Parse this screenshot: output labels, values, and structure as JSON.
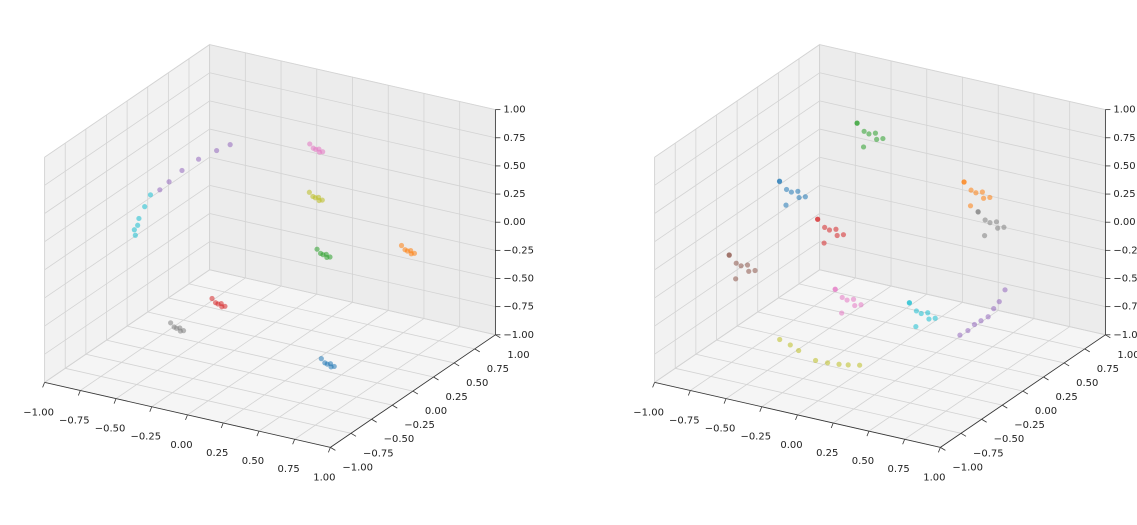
{
  "chart_data": [
    {
      "type": "scatter3d",
      "grid": true,
      "xlim": [
        -1,
        1
      ],
      "ylim": [
        -1,
        1
      ],
      "zlim": [
        -1,
        1
      ],
      "xticks": [
        {
          "value": -1,
          "label": "−1.00"
        },
        {
          "value": -0.75,
          "label": "−0.75"
        },
        {
          "value": -0.5,
          "label": "−0.50"
        },
        {
          "value": -0.25,
          "label": "−0.25"
        },
        {
          "value": 0,
          "label": "0.00"
        },
        {
          "value": 0.25,
          "label": "0.25"
        },
        {
          "value": 0.5,
          "label": "0.50"
        },
        {
          "value": 0.75,
          "label": "0.75"
        },
        {
          "value": 1,
          "label": "1.00"
        }
      ],
      "yticks": [
        {
          "value": -1,
          "label": "−1.00"
        },
        {
          "value": -0.75,
          "label": "−0.75"
        },
        {
          "value": -0.5,
          "label": "−0.50"
        },
        {
          "value": -0.25,
          "label": "−0.25"
        },
        {
          "value": 0,
          "label": "0.00"
        },
        {
          "value": 0.25,
          "label": "0.25"
        },
        {
          "value": 0.5,
          "label": "0.50"
        },
        {
          "value": 0.75,
          "label": "0.75"
        },
        {
          "value": 1,
          "label": "1.00"
        }
      ],
      "zticks": [
        {
          "value": -1,
          "label": "−1.00"
        },
        {
          "value": -0.75,
          "label": "−0.75"
        },
        {
          "value": -0.5,
          "label": "−0.50"
        },
        {
          "value": -0.25,
          "label": "−0.25"
        },
        {
          "value": 0,
          "label": "0.00"
        },
        {
          "value": 0.25,
          "label": "0.25"
        },
        {
          "value": 0.5,
          "label": "0.50"
        },
        {
          "value": 0.75,
          "label": "0.75"
        },
        {
          "value": 1,
          "label": "1.00"
        }
      ],
      "series": [
        {
          "color": "#1f77b4",
          "x": [
            0.62,
            0.66,
            0.58,
            0.64,
            0.59,
            0.67
          ],
          "y": [
            -0.38,
            -0.41,
            -0.34,
            -0.33,
            -0.4,
            -0.42
          ],
          "z": [
            -0.68,
            -0.65,
            -0.7,
            -0.72,
            -0.63,
            -0.67
          ]
        },
        {
          "color": "#ff7f0e",
          "x": [
            0.5,
            0.54,
            0.46,
            0.52,
            0.47,
            0.55
          ],
          "y": [
            0.8,
            0.77,
            0.84,
            0.85,
            0.78,
            0.76
          ],
          "z": [
            -0.3,
            -0.27,
            -0.32,
            -0.34,
            -0.25,
            -0.29
          ]
        },
        {
          "color": "#2ca02c",
          "x": [
            0.7,
            0.74,
            0.66,
            0.72,
            0.67,
            0.75
          ],
          "y": [
            -0.57,
            -0.6,
            -0.53,
            -0.52,
            -0.59,
            -0.61
          ],
          "z": [
            0.41,
            0.44,
            0.39,
            0.37,
            0.46,
            0.42
          ]
        },
        {
          "color": "#d62728",
          "x": [
            -0.52,
            -0.48,
            -0.56,
            -0.5,
            -0.55,
            -0.47
          ],
          "y": [
            0.27,
            0.24,
            0.31,
            0.32,
            0.25,
            0.23
          ],
          "z": [
            -0.8,
            -0.77,
            -0.82,
            -0.84,
            -0.75,
            -0.79
          ]
        },
        {
          "color": "#9467bd",
          "x": [
            -0.72,
            -0.8,
            -0.87,
            -0.92,
            -0.95,
            -0.66
          ],
          "y": [
            0.6,
            0.52,
            0.44,
            0.37,
            0.31,
            0.66
          ],
          "z": [
            0.34,
            0.28,
            0.2,
            0.12,
            0.07,
            0.38
          ]
        },
        {
          "color": "#e377c2",
          "x": [
            -0.2,
            -0.16,
            -0.24,
            -0.18,
            -0.23,
            -0.15
          ],
          "y": [
            0.9,
            0.87,
            0.94,
            0.95,
            0.88,
            0.86
          ],
          "z": [
            0.35,
            0.38,
            0.33,
            0.31,
            0.4,
            0.36
          ]
        },
        {
          "color": "#7f7f7f",
          "x": [
            -0.55,
            -0.51,
            -0.59,
            -0.53,
            -0.58,
            -0.5
          ],
          "y": [
            -0.18,
            -0.21,
            -0.14,
            -0.13,
            -0.2,
            -0.22
          ],
          "z": [
            -0.8,
            -0.77,
            -0.82,
            -0.84,
            -0.75,
            -0.79
          ]
        },
        {
          "color": "#bcbd22",
          "x": [
            -0.22,
            -0.18,
            -0.26,
            -0.2,
            -0.25,
            -0.17
          ],
          "y": [
            0.93,
            0.9,
            0.97,
            0.98,
            0.91,
            0.89
          ],
          "z": [
            -0.1,
            -0.07,
            -0.12,
            -0.14,
            -0.05,
            -0.09
          ]
        },
        {
          "color": "#17becf",
          "x": [
            -0.9,
            -0.9,
            -0.9,
            -0.88,
            -0.85,
            -0.88
          ],
          "y": [
            0.11,
            0.04,
            -0.03,
            -0.08,
            -0.16,
            -0.12
          ],
          "z": [
            0.14,
            0.07,
            0.0,
            -0.03,
            -0.07,
            -0.05
          ]
        }
      ]
    },
    {
      "type": "scatter3d",
      "grid": true,
      "xlim": [
        -1,
        1
      ],
      "ylim": [
        -1,
        1
      ],
      "zlim": [
        -1,
        1
      ],
      "xticks": [
        {
          "value": -1,
          "label": "−1.00"
        },
        {
          "value": -0.75,
          "label": "−0.75"
        },
        {
          "value": -0.5,
          "label": "−0.50"
        },
        {
          "value": -0.25,
          "label": "−0.25"
        },
        {
          "value": 0,
          "label": "0.00"
        },
        {
          "value": 0.25,
          "label": "0.25"
        },
        {
          "value": 0.5,
          "label": "0.50"
        },
        {
          "value": 0.75,
          "label": "0.75"
        },
        {
          "value": 1,
          "label": "1.00"
        }
      ],
      "yticks": [
        {
          "value": -1,
          "label": "−1.00"
        },
        {
          "value": -0.75,
          "label": "−0.75"
        },
        {
          "value": -0.5,
          "label": "−0.50"
        },
        {
          "value": -0.25,
          "label": "−0.25"
        },
        {
          "value": 0,
          "label": "0.00"
        },
        {
          "value": 0.25,
          "label": "0.25"
        },
        {
          "value": 0.5,
          "label": "0.50"
        },
        {
          "value": 0.75,
          "label": "0.75"
        },
        {
          "value": 1,
          "label": "1.00"
        }
      ],
      "zticks": [
        {
          "value": -1,
          "label": "−1.00"
        },
        {
          "value": -0.75,
          "label": "−0.75"
        },
        {
          "value": -0.5,
          "label": "−0.50"
        },
        {
          "value": -0.25,
          "label": "−0.25"
        },
        {
          "value": 0,
          "label": "0.00"
        },
        {
          "value": 0.25,
          "label": "0.25"
        },
        {
          "value": 0.5,
          "label": "0.50"
        },
        {
          "value": 0.75,
          "label": "0.75"
        },
        {
          "value": 1,
          "label": "1.00"
        }
      ],
      "series": [
        {
          "color": "#1f77b4",
          "x": [
            -0.88,
            -0.8,
            -0.96,
            -0.84,
            -0.94,
            -0.78,
            -0.98,
            -0.86
          ],
          "y": [
            0.45,
            0.39,
            0.53,
            0.55,
            0.41,
            0.37,
            0.48,
            0.35
          ],
          "z": [
            0,
            0.06,
            -0.04,
            -0.08,
            0.1,
            0.02,
            0.05,
            -0.06
          ]
        },
        {
          "color": "#ff7f0e",
          "x": [
            0.7,
            0.78,
            0.62,
            0.74,
            0.64,
            0.8,
            0.6,
            0.72
          ],
          "y": [
            -0.05,
            -0.11,
            0.03,
            0.05,
            -0.09,
            -0.13,
            -0.02,
            -0.15
          ],
          "z": [
            0.7,
            0.76,
            0.66,
            0.62,
            0.8,
            0.72,
            0.75,
            0.64
          ]
        },
        {
          "color": "#2ca02c",
          "x": [
            -0.47,
            -0.39,
            -0.55,
            -0.43,
            -0.53,
            -0.37,
            -0.57,
            -0.45
          ],
          "y": [
            0.68,
            0.62,
            0.76,
            0.78,
            0.64,
            0.6,
            0.71,
            0.58
          ],
          "z": [
            0.52,
            0.58,
            0.48,
            0.44,
            0.62,
            0.54,
            0.57,
            0.46
          ]
        },
        {
          "color": "#d62728",
          "x": [
            -0.7,
            -0.62,
            -0.78,
            -0.66,
            -0.76,
            -0.6,
            -0.8,
            -0.68
          ],
          "y": [
            0.6,
            0.54,
            0.68,
            0.7,
            0.56,
            0.52,
            0.63,
            0.5
          ],
          "z": [
            -0.36,
            -0.3,
            -0.4,
            -0.44,
            -0.26,
            -0.34,
            -0.31,
            -0.42
          ]
        },
        {
          "color": "#9467bd",
          "x": [
            0.75,
            0.84,
            0.93,
            0.95,
            0.95,
            0.88,
            0.8,
            0.94
          ],
          "y": [
            -0.33,
            -0.31,
            -0.3,
            -0.2,
            -0.13,
            -0.3,
            -0.32,
            -0.25
          ],
          "z": [
            -0.41,
            -0.3,
            -0.21,
            -0.12,
            -0.05,
            -0.26,
            -0.36,
            -0.16
          ]
        },
        {
          "color": "#8c564b",
          "x": [
            -0.88,
            -0.8,
            -0.96,
            -0.84,
            -0.94,
            -0.78,
            -0.98,
            -0.86
          ],
          "y": [
            -0.16,
            -0.22,
            -0.08,
            -0.06,
            -0.2,
            -0.24,
            -0.13,
            -0.26
          ],
          "z": [
            -0.35,
            -0.29,
            -0.39,
            -0.43,
            -0.25,
            -0.33,
            -0.3,
            -0.41
          ]
        },
        {
          "color": "#e377c2",
          "x": [
            -0.45,
            -0.37,
            -0.53,
            -0.41,
            -0.51,
            -0.35,
            -0.55,
            -0.43
          ],
          "y": [
            0.38,
            0.32,
            0.46,
            0.48,
            0.34,
            0.3,
            0.41,
            0.28
          ],
          "z": [
            -0.8,
            -0.74,
            -0.84,
            -0.88,
            -0.7,
            -0.78,
            -0.75,
            -0.86
          ]
        },
        {
          "color": "#7f7f7f",
          "x": [
            0.25,
            0.33,
            0.17,
            0.29,
            0.19,
            0.35,
            0.15,
            0.27
          ],
          "y": [
            0.9,
            0.84,
            0.98,
            1.0,
            0.86,
            0.82,
            0.93,
            0.8
          ],
          "z": [
            -0.17,
            -0.11,
            -0.21,
            -0.25,
            -0.07,
            -0.15,
            -0.12,
            -0.23
          ]
        },
        {
          "color": "#bcbd22",
          "x": [
            -0.5,
            -0.35,
            -0.22,
            -0.05,
            0.1,
            -0.42,
            -0.13,
            0.02
          ],
          "y": [
            -0.35,
            -0.38,
            -0.4,
            -0.41,
            -0.42,
            -0.36,
            -0.41,
            -0.42
          ],
          "z": [
            -0.8,
            -0.84,
            -0.88,
            -0.86,
            -0.82,
            -0.82,
            -0.87,
            -0.84
          ]
        },
        {
          "color": "#17becf",
          "x": [
            0,
            0.08,
            -0.08,
            0.04,
            -0.06,
            0.1,
            -0.1,
            0.02
          ],
          "y": [
            0.5,
            0.44,
            0.58,
            0.6,
            0.46,
            0.42,
            0.53,
            0.4
          ],
          "z": [
            -0.85,
            -0.79,
            -0.89,
            -0.93,
            -0.75,
            -0.83,
            -0.8,
            -0.91
          ]
        }
      ]
    }
  ]
}
